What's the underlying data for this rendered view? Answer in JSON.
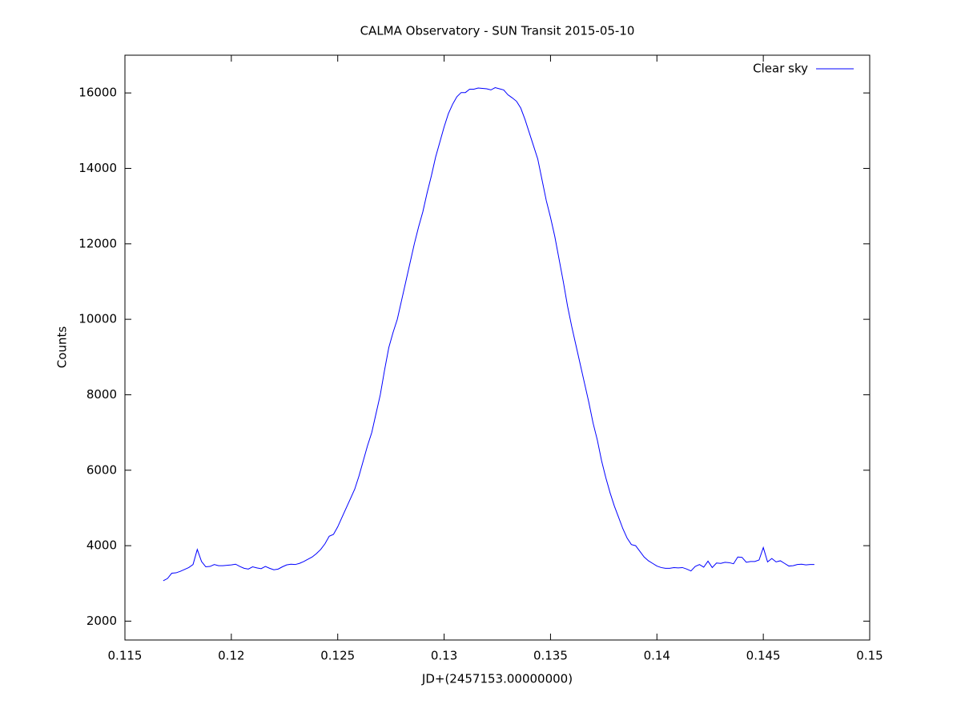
{
  "chart_data": {
    "type": "line",
    "title": "CALMA Observatory - SUN Transit 2015-05-10",
    "x_label": "JD+(2457153.00000000)",
    "y_label": "Counts",
    "x": [
      0.1168,
      0.117,
      0.1172,
      0.1174,
      0.1176,
      0.1178,
      0.118,
      0.1182,
      0.1184,
      0.1186,
      0.1188,
      0.119,
      0.1192,
      0.1194,
      0.1196,
      0.1198,
      0.12,
      0.1202,
      0.1204,
      0.1206,
      0.1208,
      0.121,
      0.1212,
      0.1214,
      0.1216,
      0.1218,
      0.122,
      0.1222,
      0.1224,
      0.1226,
      0.1228,
      0.123,
      0.1232,
      0.1234,
      0.1236,
      0.1238,
      0.124,
      0.1242,
      0.1244,
      0.1246,
      0.1248,
      0.125,
      0.1252,
      0.1254,
      0.1256,
      0.1258,
      0.126,
      0.1262,
      0.1264,
      0.1266,
      0.1268,
      0.127,
      0.1272,
      0.1274,
      0.1276,
      0.1278,
      0.128,
      0.1282,
      0.1284,
      0.1286,
      0.1288,
      0.129,
      0.1292,
      0.1294,
      0.1296,
      0.1298,
      0.13,
      0.1302,
      0.1304,
      0.1306,
      0.1308,
      0.131,
      0.1312,
      0.1314,
      0.1316,
      0.1318,
      0.132,
      0.1322,
      0.1324,
      0.1326,
      0.1328,
      0.133,
      0.1332,
      0.1334,
      0.1336,
      0.1338,
      0.134,
      0.1342,
      0.1344,
      0.1346,
      0.1348,
      0.135,
      0.1352,
      0.1354,
      0.1356,
      0.1358,
      0.136,
      0.1362,
      0.1364,
      0.1366,
      0.1368,
      0.137,
      0.1372,
      0.1374,
      0.1376,
      0.1378,
      0.138,
      0.1382,
      0.1384,
      0.1386,
      0.1388,
      0.139,
      0.1392,
      0.1394,
      0.1396,
      0.1398,
      0.14,
      0.1402,
      0.1404,
      0.1406,
      0.1408,
      0.141,
      0.1412,
      0.1414,
      0.1416,
      0.1418,
      0.142,
      0.1422,
      0.1424,
      0.1426,
      0.1428,
      0.143,
      0.1432,
      0.1434,
      0.1436,
      0.1438,
      0.144,
      0.1442,
      0.1444,
      0.1446,
      0.1448,
      0.145,
      0.1452,
      0.1454,
      0.1456,
      0.1458,
      0.146,
      0.1462,
      0.1464,
      0.1466,
      0.1468,
      0.147,
      0.1472,
      0.1474
    ],
    "series": [
      {
        "name": "Clear sky",
        "color": "#0000ff",
        "values": [
          3070,
          3130,
          3270,
          3280,
          3320,
          3370,
          3420,
          3500,
          3900,
          3580,
          3440,
          3450,
          3500,
          3470,
          3470,
          3480,
          3490,
          3510,
          3450,
          3400,
          3380,
          3440,
          3410,
          3390,
          3450,
          3400,
          3360,
          3380,
          3440,
          3490,
          3510,
          3500,
          3530,
          3580,
          3640,
          3700,
          3790,
          3900,
          4050,
          4250,
          4300,
          4500,
          4750,
          5000,
          5250,
          5500,
          5850,
          6250,
          6650,
          7000,
          7500,
          8000,
          8650,
          9250,
          9650,
          10000,
          10500,
          11000,
          11500,
          12000,
          12450,
          12850,
          13350,
          13800,
          14300,
          14700,
          15100,
          15450,
          15700,
          15900,
          16010,
          16010,
          16100,
          16100,
          16130,
          16120,
          16110,
          16080,
          16140,
          16110,
          16080,
          15950,
          15870,
          15780,
          15600,
          15300,
          14950,
          14600,
          14250,
          13700,
          13150,
          12700,
          12200,
          11600,
          11000,
          10350,
          9800,
          9300,
          8800,
          8300,
          7800,
          7250,
          6800,
          6250,
          5800,
          5400,
          5050,
          4750,
          4450,
          4200,
          4030,
          4000,
          3850,
          3700,
          3600,
          3530,
          3460,
          3420,
          3400,
          3400,
          3420,
          3410,
          3420,
          3380,
          3330,
          3450,
          3500,
          3430,
          3590,
          3420,
          3540,
          3530,
          3560,
          3550,
          3520,
          3700,
          3690,
          3560,
          3580,
          3580,
          3620,
          3950,
          3570,
          3660,
          3570,
          3600,
          3530,
          3460,
          3470,
          3500,
          3510,
          3490,
          3500,
          3500
        ]
      }
    ],
    "xlim": [
      0.115,
      0.15
    ],
    "xticks": [
      0.115,
      0.12,
      0.125,
      0.13,
      0.135,
      0.14,
      0.145,
      0.15
    ],
    "ylim": [
      1500,
      17000
    ],
    "yticks": [
      2000,
      4000,
      6000,
      8000,
      10000,
      12000,
      14000,
      16000
    ],
    "legend": "top-right"
  }
}
